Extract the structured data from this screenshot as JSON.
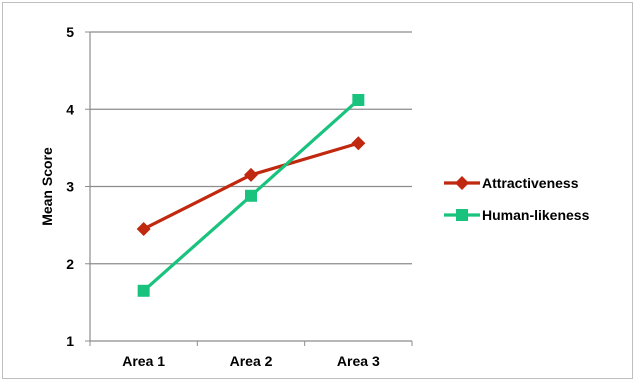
{
  "chart_data": {
    "type": "line",
    "categories": [
      "Area 1",
      "Area 2",
      "Area 3"
    ],
    "series": [
      {
        "name": "Attractiveness",
        "values": [
          2.45,
          3.15,
          3.56
        ],
        "color": "#C0280F",
        "marker": "diamond"
      },
      {
        "name": "Human-likeness",
        "values": [
          1.65,
          2.88,
          4.12
        ],
        "color": "#19C37D",
        "marker": "square"
      }
    ],
    "ylabel": "Mean Score",
    "xlabel": "",
    "ylim": [
      1,
      5
    ],
    "yticks": [
      1,
      2,
      3,
      4,
      5
    ],
    "grid": true,
    "legend_position": "right"
  }
}
